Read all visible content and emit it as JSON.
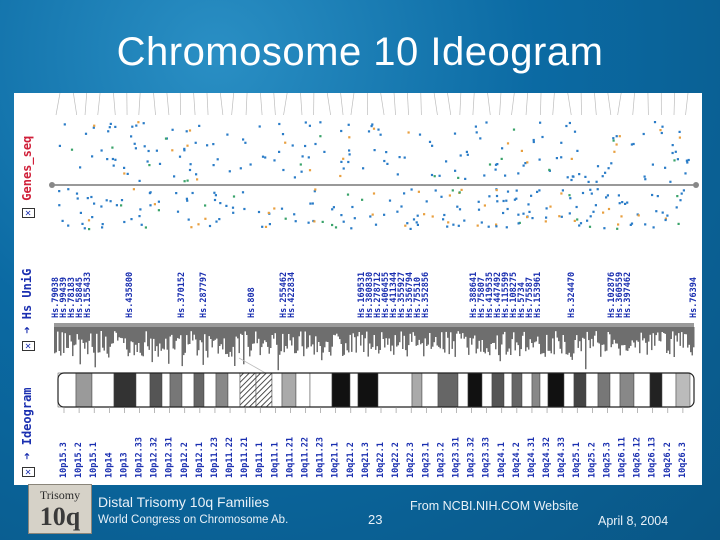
{
  "title": "Chromosome 10 Ideogram",
  "tracks": {
    "genes": "Genes_seq",
    "unigene": "Hs UniG",
    "ideogram": "Ideogram"
  },
  "unigene_labels": [
    "Hs.79038",
    "Hs.99439",
    "Hs.78183",
    "Hs.58845",
    "Hs.155433",
    "Hs.435800",
    "Hs.370152",
    "Hs.287797",
    "Hs.808",
    "Hs.255462",
    "Hs.422834",
    "Hs.169531",
    "Hs.380830",
    "Hs.278712",
    "Hs.406455",
    "Hs.411344",
    "Hs.355927",
    "Hs.356794",
    "Hs.75510",
    "Hs.352856",
    "Hs.388641",
    "Hs.75807",
    "Hs.419535",
    "Hs.447492",
    "Hs.115599",
    "Hs.108275",
    "Hs.5734",
    "Hs.75587",
    "Hs.153961",
    "Hs.324470",
    "Hs.102876",
    "Hs.360559",
    "Hs.397462",
    "Hs.76394"
  ],
  "bands": [
    "10p15.3",
    "10p15.2",
    "10p15.1",
    "10p14",
    "10p13",
    "10p12.33",
    "10p12.32",
    "10p12.31",
    "10p12.2",
    "10p12.1",
    "10p11.23",
    "10p11.22",
    "10p11.21",
    "10p11.1",
    "10q11.1",
    "10q11.21",
    "10q11.22",
    "10q11.23",
    "10q21.1",
    "10q21.2",
    "10q21.3",
    "10q22.1",
    "10q22.2",
    "10q22.3",
    "10q23.1",
    "10q23.2",
    "10q23.31",
    "10q23.32",
    "10q23.33",
    "10q24.1",
    "10q24.2",
    "10q24.31",
    "10q24.32",
    "10q24.33",
    "10q25.1",
    "10q25.2",
    "10q25.3",
    "10q26.11",
    "10q26.12",
    "10q26.13",
    "10q26.2",
    "10q26.3"
  ],
  "colors": {
    "background": "#0b6aa3",
    "dot_blue": "#2a7cc7",
    "dot_orange": "#e8a040",
    "dot_green": "#3aa36a",
    "unigene_track": "#6e6e6e",
    "label_blue": "#1a2fb0",
    "label_red": "#d0203a"
  },
  "footer": {
    "logo_top": "Trisomy",
    "logo_bottom": "10q",
    "line1": "Distal Trisomy 10q Families",
    "line2": "World Congress on Chromosome Ab.",
    "page": "23",
    "source": "From NCBI.NIH.COM Website",
    "date": "April 8, 2004"
  }
}
